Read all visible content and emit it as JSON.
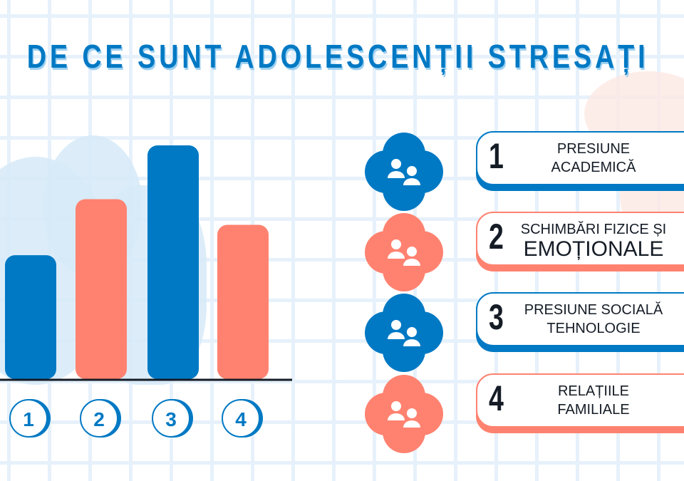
{
  "title": "DE CE SUNT ADOLESCENȚII STRESAȚI",
  "colors": {
    "blue": "#0079c4",
    "coral": "#ff8270",
    "dark": "#151c26"
  },
  "chart_data": {
    "type": "bar",
    "categories": [
      "1",
      "2",
      "3",
      "4"
    ],
    "values": [
      53,
      77,
      100,
      66
    ],
    "ylim": [
      0,
      100
    ],
    "grid": false,
    "colors": [
      "#0079c4",
      "#ff8270",
      "#0079c4",
      "#ff8270"
    ]
  },
  "items": [
    {
      "number": "1",
      "line1": "PRESIUNE",
      "line2": "ACADEMICĂ",
      "icon": "people-swap-icon",
      "color": "#0079c4"
    },
    {
      "number": "2",
      "line1": "SCHIMBĂRI FIZICE ȘI",
      "line2": "EMOȚIONALE",
      "icon": "person-clock-icon",
      "color": "#ff8270"
    },
    {
      "number": "3",
      "line1": "PRESIUNE SOCIALĂ",
      "line2": "TEHNOLOGIE",
      "icon": "people-pressure-icon",
      "color": "#0079c4"
    },
    {
      "number": "4",
      "line1": "RELAȚIILE",
      "line2": "FAMILIALE",
      "icon": "hierarchy-icon",
      "color": "#ff8270"
    }
  ]
}
